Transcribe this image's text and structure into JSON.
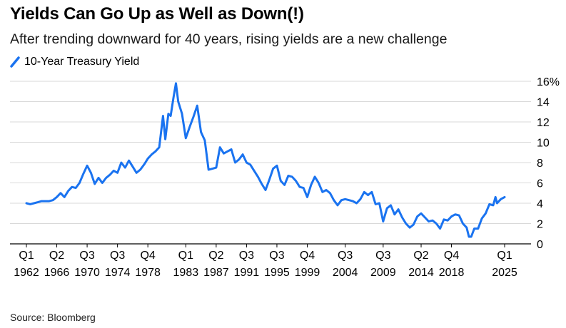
{
  "colors": {
    "line": "#1a73f0",
    "grid": "#d9d9d9",
    "axis": "#000000"
  },
  "chart_data": {
    "type": "line",
    "title": "Yields Can Go Up as Well as Down(!)",
    "subtitle": "After trending downward for 40 years, rising yields are a new challenge",
    "source": "Source: Bloomberg",
    "legend": "top-left",
    "grid": true,
    "ylim": [
      0,
      16
    ],
    "xlim": [
      1962.0,
      2025.0
    ],
    "y_ticks": [
      0,
      2,
      4,
      6,
      8,
      10,
      12,
      14,
      16
    ],
    "y_tick_labels": [
      "0",
      "2",
      "4",
      "6",
      "8",
      "10",
      "12",
      "14",
      "16%"
    ],
    "x_ticks": [
      {
        "x": 1962.0,
        "top": "Q1",
        "bottom": "1962"
      },
      {
        "x": 1966.0,
        "top": "Q2",
        "bottom": "1966"
      },
      {
        "x": 1970.0,
        "top": "Q3",
        "bottom": "1970"
      },
      {
        "x": 1974.0,
        "top": "Q3",
        "bottom": "1974"
      },
      {
        "x": 1978.0,
        "top": "Q4",
        "bottom": "1978"
      },
      {
        "x": 1983.0,
        "top": "Q1",
        "bottom": "1983"
      },
      {
        "x": 1987.0,
        "top": "Q2",
        "bottom": "1987"
      },
      {
        "x": 1991.0,
        "top": "Q3",
        "bottom": "1991"
      },
      {
        "x": 1995.0,
        "top": "Q3",
        "bottom": "1995"
      },
      {
        "x": 1999.0,
        "top": "Q4",
        "bottom": "1999"
      },
      {
        "x": 2004.0,
        "top": "Q3",
        "bottom": "2004"
      },
      {
        "x": 2009.0,
        "top": "Q3",
        "bottom": "2009"
      },
      {
        "x": 2014.0,
        "top": "Q2",
        "bottom": "2014"
      },
      {
        "x": 2018.0,
        "top": "Q4",
        "bottom": "2018"
      },
      {
        "x": 2025.0,
        "top": "Q1",
        "bottom": "2025"
      }
    ],
    "series": [
      {
        "name": "10-Year Treasury Yield",
        "x": [
          1962.0,
          1962.5,
          1963.0,
          1963.5,
          1964.0,
          1964.5,
          1965.0,
          1965.5,
          1966.0,
          1966.5,
          1967.0,
          1967.5,
          1968.0,
          1968.5,
          1969.0,
          1969.5,
          1970.0,
          1970.5,
          1971.0,
          1971.5,
          1972.0,
          1972.5,
          1973.0,
          1973.5,
          1974.0,
          1974.5,
          1975.0,
          1975.5,
          1976.0,
          1976.5,
          1977.0,
          1977.5,
          1978.0,
          1978.5,
          1979.0,
          1979.5,
          1980.0,
          1980.3,
          1980.7,
          1981.0,
          1981.4,
          1981.7,
          1982.0,
          1982.5,
          1983.0,
          1983.5,
          1984.0,
          1984.5,
          1985.0,
          1985.5,
          1986.0,
          1986.5,
          1987.0,
          1987.5,
          1988.0,
          1988.5,
          1989.0,
          1989.5,
          1990.0,
          1990.5,
          1991.0,
          1991.5,
          1992.0,
          1992.5,
          1993.0,
          1993.5,
          1994.0,
          1994.5,
          1995.0,
          1995.5,
          1996.0,
          1996.5,
          1997.0,
          1997.5,
          1998.0,
          1998.5,
          1999.0,
          1999.5,
          2000.0,
          2000.5,
          2001.0,
          2001.5,
          2002.0,
          2002.5,
          2003.0,
          2003.5,
          2004.0,
          2004.5,
          2005.0,
          2005.5,
          2006.0,
          2006.5,
          2007.0,
          2007.5,
          2008.0,
          2008.5,
          2009.0,
          2009.5,
          2010.0,
          2010.5,
          2011.0,
          2011.5,
          2012.0,
          2012.5,
          2013.0,
          2013.5,
          2014.0,
          2014.5,
          2015.0,
          2015.5,
          2016.0,
          2016.5,
          2017.0,
          2017.5,
          2018.0,
          2018.5,
          2019.0,
          2019.5,
          2020.0,
          2020.3,
          2020.6,
          2021.0,
          2021.5,
          2022.0,
          2022.5,
          2023.0,
          2023.5,
          2023.8,
          2024.0,
          2024.5,
          2025.0
        ],
        "y": [
          4.0,
          3.9,
          4.0,
          4.1,
          4.2,
          4.2,
          4.2,
          4.3,
          4.6,
          5.0,
          4.6,
          5.2,
          5.6,
          5.5,
          6.0,
          6.9,
          7.7,
          7.0,
          5.9,
          6.5,
          6.0,
          6.5,
          6.8,
          7.2,
          7.0,
          8.0,
          7.5,
          8.2,
          7.6,
          7.0,
          7.3,
          7.8,
          8.4,
          8.8,
          9.1,
          9.5,
          12.6,
          10.3,
          12.8,
          12.6,
          14.5,
          15.8,
          14.0,
          12.8,
          10.4,
          11.5,
          12.5,
          13.6,
          11.0,
          10.2,
          7.3,
          7.4,
          7.5,
          9.5,
          8.9,
          9.1,
          9.3,
          8.0,
          8.3,
          8.8,
          8.0,
          7.8,
          7.2,
          6.6,
          5.9,
          5.3,
          6.3,
          7.4,
          7.7,
          6.2,
          5.8,
          6.7,
          6.6,
          6.2,
          5.6,
          5.5,
          4.6,
          5.8,
          6.6,
          6.0,
          5.1,
          5.3,
          5.0,
          4.3,
          3.8,
          4.3,
          4.4,
          4.3,
          4.2,
          4.0,
          4.4,
          5.1,
          4.8,
          5.1,
          3.9,
          4.0,
          2.2,
          3.5,
          3.8,
          2.9,
          3.4,
          2.6,
          2.0,
          1.6,
          1.9,
          2.7,
          3.0,
          2.6,
          2.2,
          2.3,
          2.0,
          1.5,
          2.4,
          2.3,
          2.7,
          2.9,
          2.8,
          2.0,
          1.6,
          0.7,
          0.7,
          1.5,
          1.5,
          2.5,
          3.0,
          3.9,
          3.8,
          4.6,
          4.0,
          4.4,
          4.6
        ]
      }
    ]
  }
}
